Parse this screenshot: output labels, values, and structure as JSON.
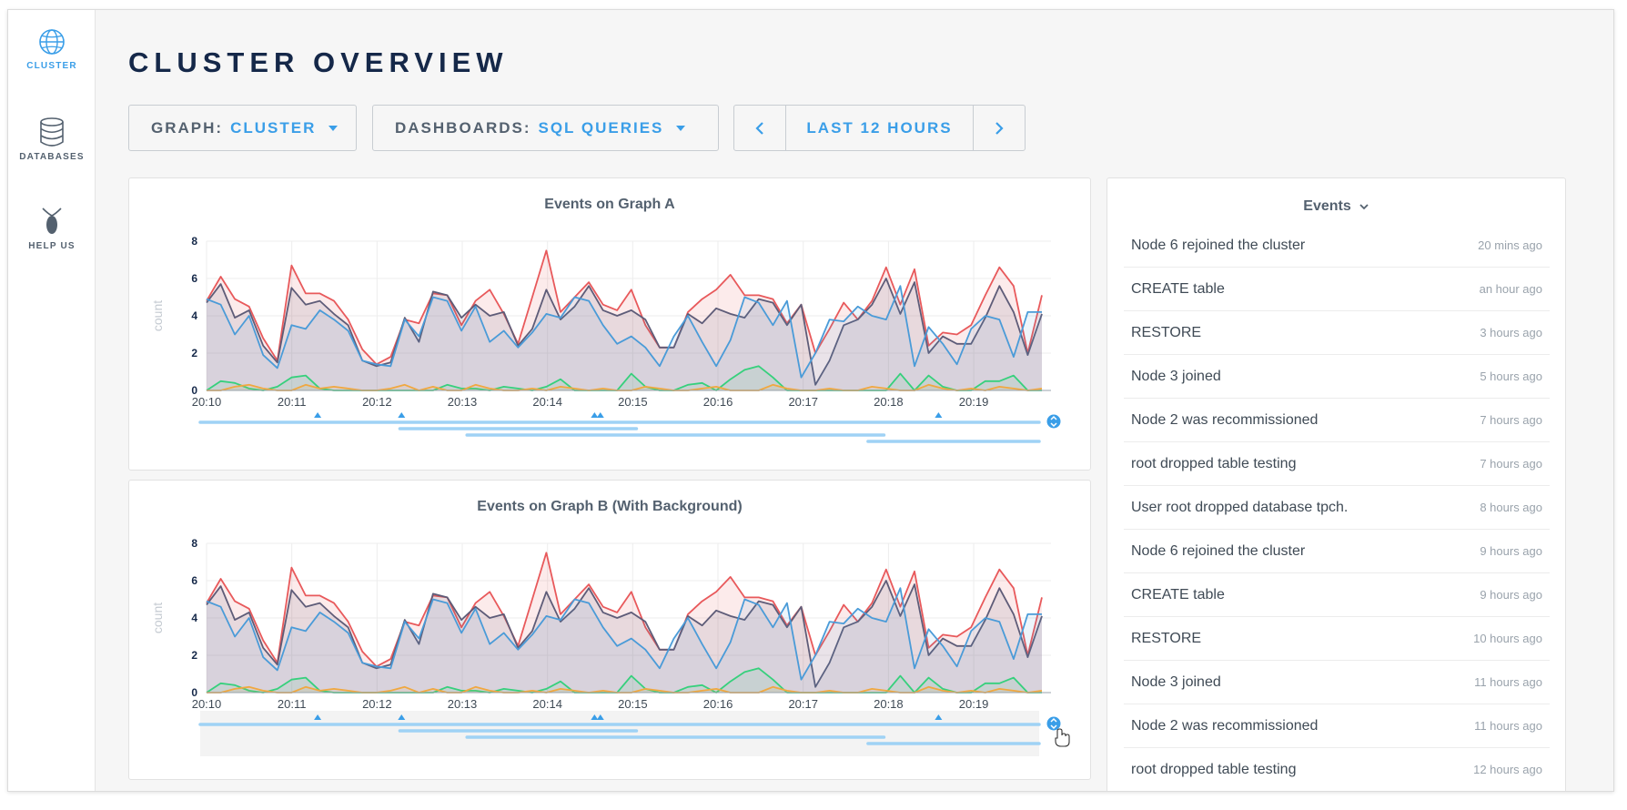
{
  "nav": [
    {
      "label": "CLUSTER",
      "icon": "globe-icon",
      "active": true
    },
    {
      "label": "DATABASES",
      "icon": "database-icon",
      "active": false
    },
    {
      "label": "HELP US",
      "icon": "cockroach-icon",
      "active": false
    }
  ],
  "page_title": "CLUSTER OVERVIEW",
  "graph_selector": {
    "label": "GRAPH:",
    "value": "CLUSTER"
  },
  "dashboard_selector": {
    "label": "DASHBOARDS:",
    "value": "SQL QUERIES"
  },
  "time_range": {
    "label": "LAST 12 HOURS",
    "prev_icon": "chevron-left-icon",
    "next_icon": "chevron-right-icon"
  },
  "colors": {
    "red": "#e8595b",
    "purple": "#5e5c78",
    "blue": "#4a9bd8",
    "green": "#36d07c",
    "orange": "#f0a840",
    "accent": "#3a9ee8",
    "timeline": "#9fd2f5"
  },
  "charts": [
    {
      "title": "Events on Graph A",
      "ylabel": "count",
      "background": false
    },
    {
      "title": "Events on Graph B (With Background)",
      "ylabel": "count",
      "background": true
    }
  ],
  "chart_data": {
    "type": "line",
    "x_ticks": [
      "20:10",
      "20:11",
      "20:12",
      "20:13",
      "20:14",
      "20:15",
      "20:16",
      "20:17",
      "20:18",
      "20:19"
    ],
    "ylim": [
      0,
      8
    ],
    "y_ticks": [
      0,
      2,
      4,
      6,
      8
    ],
    "ylabel": "count",
    "series": [
      {
        "color": "red",
        "values": [
          4.8,
          6.1,
          4.9,
          4.5,
          2.8,
          1.6,
          6.7,
          5.2,
          5.2,
          4.8,
          3.8,
          2.2,
          1.4,
          1.8,
          3.8,
          3.6,
          5.2,
          5.1,
          3.5,
          4.8,
          5.4,
          4.1,
          2.5,
          5.0,
          7.5,
          4.2,
          5.0,
          5.8,
          4.6,
          4.3,
          5.4,
          3.5,
          2.3,
          2.3,
          4.2,
          4.9,
          5.4,
          6.2,
          5.1,
          5.1,
          4.9,
          3.6,
          4.6,
          2.0,
          3.3,
          4.7,
          3.8,
          4.8,
          6.6,
          4.6,
          6.5,
          2.4,
          3.1,
          3.0,
          3.5,
          5.1,
          6.6,
          5.6,
          2.0,
          5.1
        ]
      },
      {
        "color": "purple",
        "values": [
          4.7,
          5.7,
          3.9,
          4.3,
          2.4,
          1.5,
          5.5,
          4.6,
          4.8,
          4.1,
          3.5,
          1.6,
          1.3,
          1.5,
          3.9,
          2.6,
          5.3,
          5.1,
          3.9,
          4.6,
          4.0,
          4.2,
          2.4,
          3.3,
          5.4,
          3.8,
          4.5,
          5.6,
          4.3,
          4.0,
          4.3,
          3.8,
          2.3,
          2.3,
          4.1,
          3.6,
          4.4,
          4.1,
          3.9,
          4.9,
          4.7,
          3.5,
          4.6,
          0.3,
          1.6,
          3.5,
          3.8,
          4.6,
          6.0,
          4.1,
          5.8,
          2.0,
          2.9,
          2.5,
          2.5,
          3.9,
          5.6,
          4.2,
          1.9,
          4.1
        ]
      },
      {
        "color": "blue",
        "values": [
          4.9,
          4.6,
          3.0,
          4.0,
          1.9,
          1.2,
          3.5,
          3.3,
          4.3,
          3.8,
          3.2,
          1.6,
          1.4,
          1.3,
          3.8,
          2.9,
          5.0,
          4.8,
          3.2,
          4.5,
          2.6,
          3.2,
          2.3,
          3.1,
          4.1,
          3.9,
          5.0,
          4.8,
          3.5,
          2.5,
          2.9,
          2.3,
          1.3,
          2.9,
          4.0,
          2.6,
          1.3,
          2.7,
          5.0,
          4.7,
          3.5,
          4.8,
          0.7,
          2.0,
          3.8,
          3.7,
          4.5,
          4.0,
          3.8,
          5.6,
          1.3,
          3.4,
          2.5,
          1.4,
          3.3,
          4.0,
          3.8,
          1.8,
          4.2,
          4.2
        ]
      },
      {
        "color": "green",
        "values": [
          0,
          0.5,
          0.4,
          0.1,
          0,
          0.2,
          0.7,
          0.8,
          0.1,
          0,
          0,
          0,
          0,
          0,
          0,
          0,
          0,
          0.3,
          0.1,
          0.1,
          0,
          0.2,
          0.1,
          0,
          0.2,
          0.6,
          0,
          0,
          0,
          0,
          0.9,
          0.2,
          0,
          0,
          0.3,
          0.4,
          0,
          0.6,
          1.1,
          1.3,
          0.7,
          0,
          0,
          0,
          0,
          0,
          0,
          0,
          0,
          0.9,
          0,
          0.8,
          0.2,
          0,
          0,
          0.5,
          0.5,
          0.8,
          0,
          0
        ]
      },
      {
        "color": "orange",
        "values": [
          0,
          0,
          0.2,
          0.3,
          0.1,
          0,
          0,
          0.3,
          0.1,
          0.2,
          0.1,
          0,
          0,
          0.1,
          0.3,
          0,
          0.2,
          0,
          0,
          0.3,
          0.1,
          0,
          0,
          0.1,
          0,
          0.2,
          0.1,
          0,
          0.1,
          0,
          0,
          0.2,
          0.1,
          0,
          0,
          0.1,
          0.2,
          0,
          0,
          0,
          0.3,
          0.1,
          0,
          0,
          0.1,
          0,
          0,
          0.2,
          0.1,
          0,
          0,
          0.3,
          0.1,
          0,
          0.1,
          0,
          0.2,
          0.1,
          0,
          0.1
        ]
      }
    ],
    "timeline_markers": [
      0.14,
      0.24,
      0.47,
      0.477,
      0.88
    ],
    "timeline_spans": [
      [
        0.0,
        1.0
      ],
      [
        0.238,
        0.52
      ],
      [
        0.318,
        0.815
      ],
      [
        0.796,
        1.0
      ]
    ]
  },
  "events_panel": {
    "title": "Events",
    "items": [
      {
        "text": "Node 6 rejoined the cluster",
        "time": "20 mins ago"
      },
      {
        "text": "CREATE table",
        "time": "an hour ago"
      },
      {
        "text": "RESTORE",
        "time": "3 hours ago"
      },
      {
        "text": "Node 3 joined",
        "time": "5 hours ago"
      },
      {
        "text": "Node 2 was recommissioned",
        "time": "7 hours ago"
      },
      {
        "text": "root dropped table testing",
        "time": "7 hours ago"
      },
      {
        "text": "User root dropped database tpch.",
        "time": "8 hours ago"
      },
      {
        "text": "Node 6 rejoined the cluster",
        "time": "9 hours ago"
      },
      {
        "text": "CREATE table",
        "time": "9 hours ago"
      },
      {
        "text": "RESTORE",
        "time": "10 hours ago"
      },
      {
        "text": "Node 3 joined",
        "time": "11 hours ago"
      },
      {
        "text": "Node 2 was recommissioned",
        "time": "11 hours ago"
      },
      {
        "text": "root dropped table testing",
        "time": "12 hours ago"
      }
    ]
  }
}
